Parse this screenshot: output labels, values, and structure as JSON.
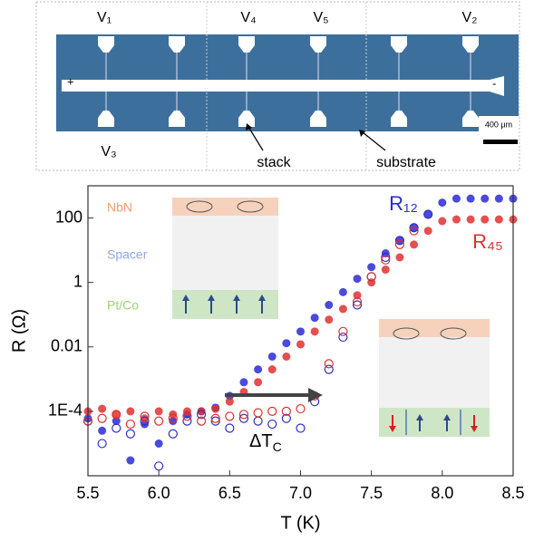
{
  "micrograph": {
    "labels": [
      "V₁",
      "V₄",
      "V₅",
      "V₂",
      "V₃"
    ],
    "plus": "+",
    "minus": "-",
    "scale_bar": "400 μm",
    "stack": "stack",
    "substrate": "substrate"
  },
  "chart_data": {
    "type": "scatter",
    "x_label": "T (K)",
    "y_label": "R (Ω)",
    "log_y": true,
    "x": [
      5.5,
      5.6,
      5.7,
      5.8,
      5.9,
      6.0,
      6.1,
      6.2,
      6.3,
      6.4,
      6.5,
      6.6,
      6.7,
      6.8,
      6.9,
      7.0,
      7.1,
      7.2,
      7.3,
      7.4,
      7.5,
      7.6,
      7.7,
      7.8,
      7.9,
      8.0,
      8.1,
      8.2,
      8.3,
      8.4,
      8.5
    ],
    "series": [
      {
        "name": "R₁₂",
        "color": "#2a2ad6",
        "marker": "filled",
        "values": [
          6e-05,
          2.5e-05,
          5e-05,
          3e-06,
          4e-05,
          1e-05,
          5e-05,
          8e-05,
          0.0001,
          0.00013,
          0.0003,
          0.0008,
          0.002,
          0.005,
          0.013,
          0.03,
          0.08,
          0.2,
          0.5,
          1.3,
          3,
          8,
          20,
          50,
          130,
          300,
          400,
          400,
          400,
          400,
          400
        ]
      },
      {
        "name": "R₄₅",
        "color": "#e03030",
        "marker": "filled",
        "values": [
          0.0001,
          0.00012,
          8e-05,
          0.0001,
          6e-05,
          0.0001,
          8e-05,
          0.0001,
          0.0001,
          0.00012,
          0.0002,
          0.0004,
          0.0008,
          0.002,
          0.005,
          0.012,
          0.03,
          0.07,
          0.15,
          0.4,
          1,
          2.5,
          6,
          15,
          40,
          80,
          90,
          90,
          90,
          90,
          90
        ]
      },
      {
        "color": "#3030c0",
        "marker": "open",
        "values": [
          5e-05,
          1e-05,
          3e-05,
          2e-05,
          5e-05,
          2e-06,
          2e-05,
          5e-05,
          8e-05,
          5e-05,
          3e-05,
          6e-05,
          5e-05,
          4e-05,
          6e-05,
          3e-05,
          0.0002,
          0.002,
          0.02,
          0.2,
          1.5,
          6,
          20,
          50,
          130,
          null,
          null,
          null,
          null,
          null,
          null
        ]
      },
      {
        "color": "#d83030",
        "marker": "open",
        "values": [
          5e-05,
          6e-05,
          8e-05,
          4e-05,
          7e-05,
          5e-05,
          6e-05,
          7e-05,
          5e-05,
          6e-05,
          7e-05,
          8e-05,
          9e-05,
          0.0001,
          0.0001,
          0.00012,
          0.0003,
          0.003,
          0.03,
          0.25,
          1.5,
          5,
          15,
          40,
          null,
          null,
          null,
          null,
          null,
          null,
          null
        ]
      }
    ],
    "xlim": [
      5.5,
      8.5
    ],
    "xticks": [
      5.5,
      {
        "value": 6.0,
        "label": "6.0"
      },
      6.5,
      {
        "value": 7.0,
        "label": "7.0"
      },
      7.5,
      {
        "value": 8.0,
        "label": "8.0"
      },
      8.5
    ],
    "ylim": [
      1e-06,
      1000
    ],
    "yticks": [
      {
        "value": 0.0001,
        "label": "1E-4"
      },
      0.01,
      1,
      100
    ],
    "annotations": {
      "nbn": "NbN",
      "spacer": "Spacer",
      "ptco": "Pt/Co",
      "delta_t": "ΔT",
      "delta_t_sub": "C"
    }
  }
}
